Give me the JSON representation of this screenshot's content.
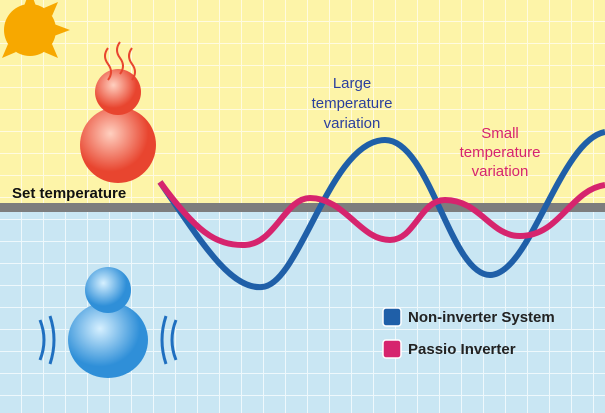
{
  "labels": {
    "set_temperature": "Set temperature",
    "large_variation": [
      "Large",
      "temperature",
      "variation"
    ],
    "small_variation": [
      "Small",
      "temperature",
      "variation"
    ]
  },
  "legend": [
    {
      "name": "Non-inverter System",
      "color": "#1f5fa8"
    },
    {
      "name": "Passio Inverter",
      "color": "#d6246e"
    }
  ]
}
